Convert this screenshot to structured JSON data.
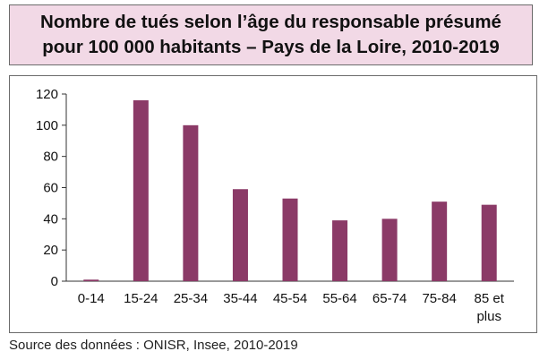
{
  "title": {
    "line1": "Nombre de tués selon l’âge du responsable présumé",
    "line2": "pour 100 000 habitants – Pays de la Loire, 2010-2019"
  },
  "source": "Source des données : ONISR, Insee, 2010-2019",
  "colors": {
    "bar": "#8b3a67",
    "title_bg": "#f2d9e6"
  },
  "chart_data": {
    "type": "bar",
    "title": "Nombre de tués selon l’âge du responsable présumé pour 100 000 habitants – Pays de la Loire, 2010-2019",
    "xlabel": "",
    "ylabel": "",
    "categories": [
      [
        "0-14"
      ],
      [
        "15-24"
      ],
      [
        "25-34"
      ],
      [
        "35-44"
      ],
      [
        "45-54"
      ],
      [
        "55-64"
      ],
      [
        "65-74"
      ],
      [
        "75-84"
      ],
      [
        "85 et",
        "plus"
      ]
    ],
    "values": [
      1,
      116,
      100,
      59,
      53,
      39,
      40,
      51,
      49
    ],
    "ylim": [
      0,
      120
    ],
    "yticks": [
      0,
      20,
      40,
      60,
      80,
      100,
      120
    ],
    "grid": false,
    "legend": "none"
  }
}
